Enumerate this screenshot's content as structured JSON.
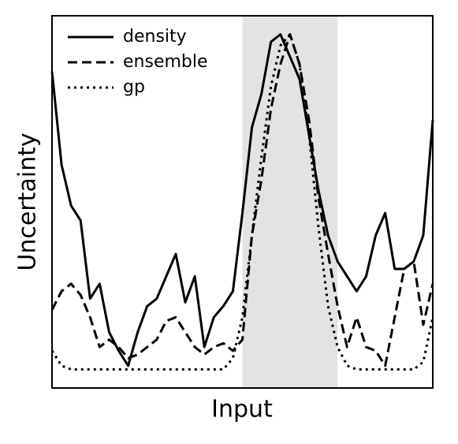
{
  "chart_data": {
    "type": "line",
    "xlabel": "Input",
    "ylabel": "Uncertainty",
    "xlim": [
      0,
      100
    ],
    "ylim": [
      0,
      100
    ],
    "shade": [
      50,
      75
    ],
    "shade_color": "#e3e3e3",
    "legend": "upper left",
    "x": [
      0,
      2.5,
      5,
      7.5,
      10,
      12.5,
      15,
      17.5,
      20,
      22.5,
      25,
      27.5,
      30,
      32.5,
      35,
      37.5,
      40,
      42.5,
      45,
      47.5,
      50,
      52.5,
      55,
      57.5,
      60,
      62.5,
      65,
      67.5,
      70,
      72.5,
      75,
      77.5,
      80,
      82.5,
      85,
      87.5,
      90,
      92.5,
      95,
      97.5,
      100
    ],
    "series": [
      {
        "name": "density",
        "color": "#000000",
        "style": "solid",
        "values": [
          85,
          60,
          49,
          45,
          24,
          28,
          15,
          10,
          6,
          15,
          22,
          24,
          30,
          36,
          23,
          30,
          11,
          19,
          22,
          26,
          47,
          70,
          79,
          93,
          95,
          89,
          83,
          68,
          53,
          41,
          34,
          30,
          26,
          30,
          41,
          47,
          32,
          32,
          34,
          41,
          72
        ]
      },
      {
        "name": "ensemble",
        "color": "#000000",
        "style": "dashed",
        "values": [
          21,
          26,
          28,
          25,
          19,
          11,
          13,
          11,
          8,
          9,
          11,
          13,
          18,
          19,
          15,
          11,
          9,
          11,
          12,
          10,
          13,
          41,
          56,
          75,
          87,
          95,
          87,
          72,
          51,
          36,
          22,
          11,
          19,
          11,
          10,
          6,
          19,
          32,
          34,
          17,
          28
        ]
      },
      {
        "name": "gp",
        "color": "#000000",
        "style": "dotted",
        "values": [
          10,
          6,
          5,
          5,
          5,
          5,
          5,
          5,
          5,
          5,
          5,
          5,
          5,
          5,
          5,
          5,
          5,
          5,
          5,
          8,
          19,
          41,
          62,
          81,
          92,
          95,
          87,
          68,
          43,
          22,
          11,
          6,
          5,
          5,
          5,
          5,
          5,
          5,
          5,
          7,
          19
        ]
      }
    ]
  }
}
